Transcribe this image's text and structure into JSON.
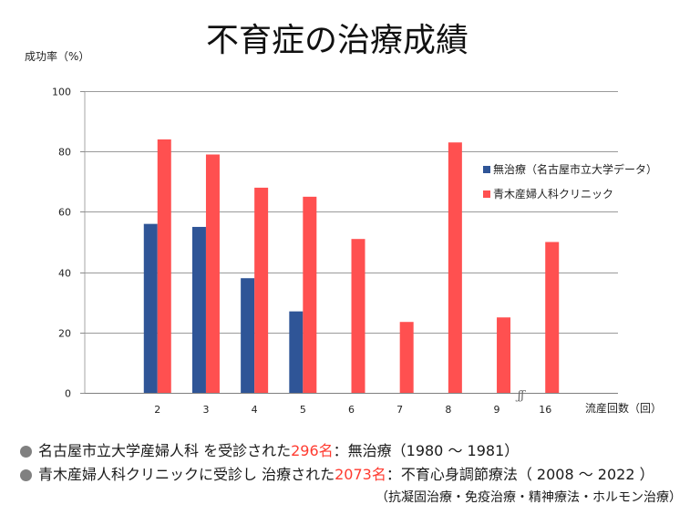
{
  "colors": {
    "highlight_text": "#FF3B30",
    "bullet": "#808080"
  },
  "chart_data": {
    "type": "bar",
    "title": "不育症の治療成績",
    "ylabel": "成功率（%）",
    "xlabel": "流産回数（回）",
    "ylim": [
      0,
      100
    ],
    "yticks": [
      0,
      20,
      40,
      60,
      80,
      100
    ],
    "grid": true,
    "legend": "right",
    "axis_break": "ʃʃ",
    "categories": [
      "2",
      "3",
      "4",
      "5",
      "6",
      "7",
      "8",
      "9",
      "16"
    ],
    "series": [
      {
        "name": "無治療（名古屋市立大学データ）",
        "color": "#2F5597",
        "values": [
          56,
          55,
          38,
          27,
          null,
          null,
          null,
          null,
          null
        ]
      },
      {
        "name": "青木産婦人科クリニック",
        "color": "#FF5050",
        "values": [
          84,
          79,
          68,
          65,
          51,
          23.5,
          83,
          25,
          50
        ]
      }
    ]
  },
  "notes": [
    {
      "lead": "名古屋市立大学産婦人科 を受診された",
      "count": "296名",
      "rest": "：無治療（1980 ～ 1981）"
    },
    {
      "lead": "青木産婦人科クリニックに受診し 治療された",
      "count": "2073名",
      "rest": "：不育心身調節療法（ 2008 ～ 2022 ）"
    }
  ],
  "treatments": "（抗凝固治療・免疫治療・精神療法・ホルモン治療）"
}
